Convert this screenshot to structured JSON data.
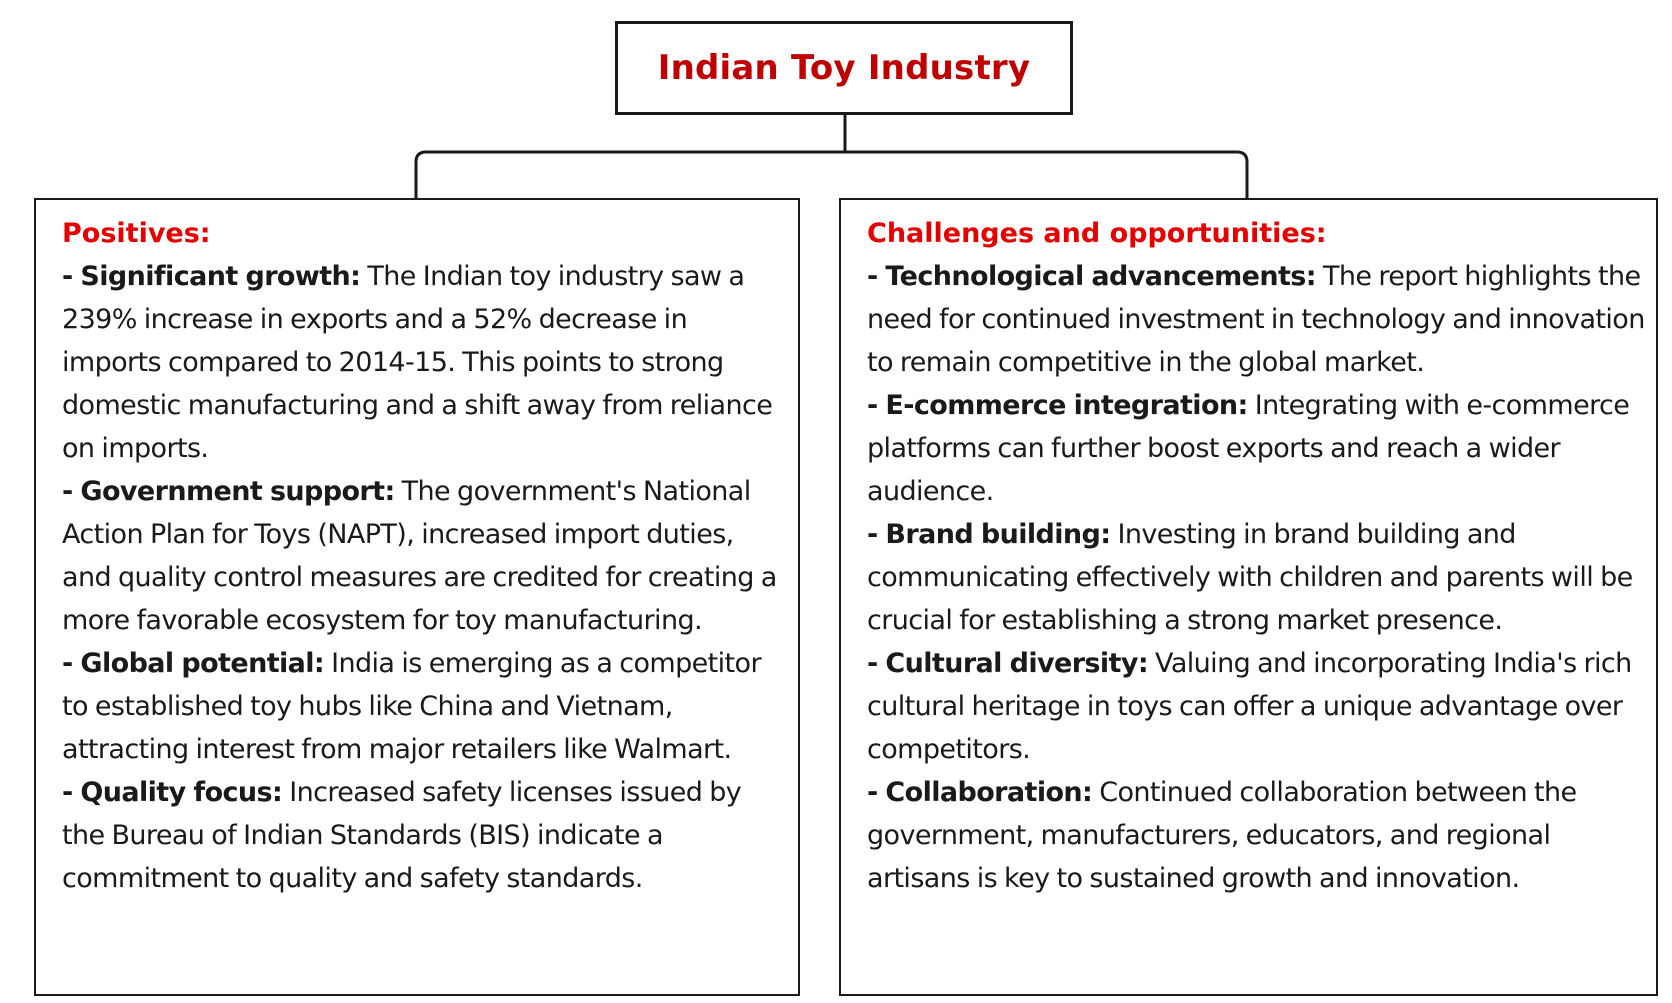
{
  "title": "Indian Toy Industry",
  "colors": {
    "title": "#c00000",
    "heading": "#e60000",
    "border": "#1a1a1a",
    "text": "#1a1a1a"
  },
  "panels": {
    "positives": {
      "heading": "Positives:",
      "items": [
        {
          "label": "Significant growth:",
          "text": "The Indian toy industry saw a 239% increase in exports and a 52% decrease in imports compared to 2014-15. This points to strong domestic manufacturing and a shift away from reliance on imports."
        },
        {
          "label": "Government support:",
          "text": "The government's National Action Plan for Toys (NAPT), increased import duties, and quality control measures are credited for creating a more favorable ecosystem for toy manufacturing."
        },
        {
          "label": "Global potential:",
          "text": "India is emerging as a competitor to established toy hubs like China and Vietnam, attracting interest from major retailers like Walmart."
        },
        {
          "label": "Quality focus:",
          "text": "Increased safety licenses issued by the Bureau of Indian Standards (BIS) indicate a commitment to quality and safety standards."
        }
      ]
    },
    "challenges": {
      "heading": "Challenges and opportunities:",
      "items": [
        {
          "label": "Technological advancements:",
          "text": "The report highlights the need for continued investment in technology and innovation to remain competitive in the global market."
        },
        {
          "label": "E-commerce integration:",
          "text": "Integrating with e-commerce platforms can further boost exports and reach a wider audience."
        },
        {
          "label": "Brand building:",
          "text": "Investing in brand building and communicating effectively with children and parents will be crucial for establishing a strong market presence."
        },
        {
          "label": "Cultural diversity:",
          "text": "Valuing and incorporating India's rich cultural heritage in toys can offer a unique advantage over competitors."
        },
        {
          "label": "Collaboration:",
          "text": "Continued collaboration between the government, manufacturers, educators, and regional artisans is key to sustained growth and innovation."
        }
      ]
    }
  }
}
